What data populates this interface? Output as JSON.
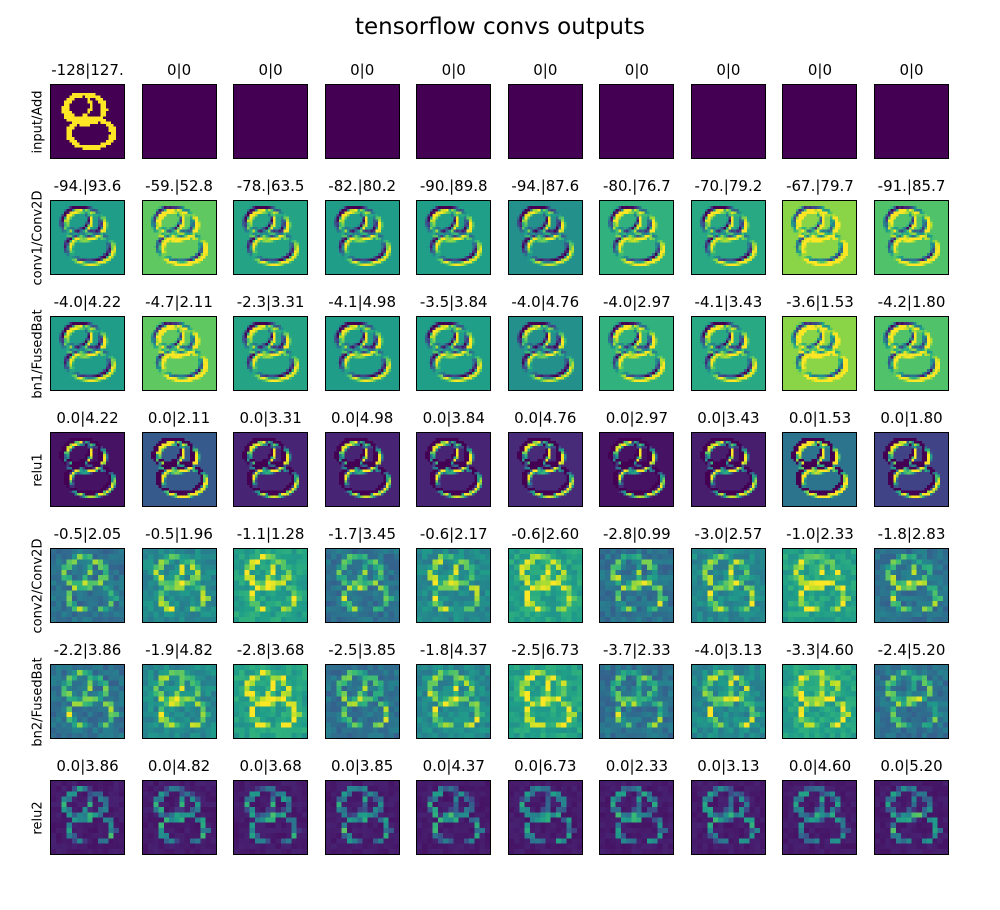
{
  "figure": {
    "title": "tensorflow convs outputs"
  },
  "chart_data": {
    "type": "heatmap",
    "title": "tensorflow convs outputs",
    "colormap": "viridis",
    "layout": {
      "rows": 7,
      "columns": 10
    },
    "rows": [
      {
        "name": "input/Add",
        "grid": 28,
        "panels": [
          {
            "label": "-128|127.",
            "min": -128,
            "max": 127,
            "pattern": "digit"
          },
          {
            "label": "0|0",
            "min": 0,
            "max": 0,
            "pattern": "constant"
          },
          {
            "label": "0|0",
            "min": 0,
            "max": 0,
            "pattern": "constant"
          },
          {
            "label": "0|0",
            "min": 0,
            "max": 0,
            "pattern": "constant"
          },
          {
            "label": "0|0",
            "min": 0,
            "max": 0,
            "pattern": "constant"
          },
          {
            "label": "0|0",
            "min": 0,
            "max": 0,
            "pattern": "constant"
          },
          {
            "label": "0|0",
            "min": 0,
            "max": 0,
            "pattern": "constant"
          },
          {
            "label": "0|0",
            "min": 0,
            "max": 0,
            "pattern": "constant"
          },
          {
            "label": "0|0",
            "min": 0,
            "max": 0,
            "pattern": "constant"
          },
          {
            "label": "0|0",
            "min": 0,
            "max": 0,
            "pattern": "constant"
          }
        ]
      },
      {
        "name": "conv1/Conv2D",
        "grid": 28,
        "panels": [
          {
            "label": "-94.|93.6",
            "min": -94,
            "max": 93.6,
            "pattern": "edge"
          },
          {
            "label": "-59.|52.8",
            "min": -59,
            "max": 52.8,
            "pattern": "edge"
          },
          {
            "label": "-78.|63.5",
            "min": -78,
            "max": 63.5,
            "pattern": "edge"
          },
          {
            "label": "-82.|80.2",
            "min": -82,
            "max": 80.2,
            "pattern": "edge"
          },
          {
            "label": "-90.|89.8",
            "min": -90,
            "max": 89.8,
            "pattern": "edge"
          },
          {
            "label": "-94.|87.6",
            "min": -94,
            "max": 87.6,
            "pattern": "edge"
          },
          {
            "label": "-80.|76.7",
            "min": -80,
            "max": 76.7,
            "pattern": "edge"
          },
          {
            "label": "-70.|79.2",
            "min": -70,
            "max": 79.2,
            "pattern": "edge"
          },
          {
            "label": "-67.|79.7",
            "min": -67,
            "max": 79.7,
            "pattern": "edge"
          },
          {
            "label": "-91.|85.7",
            "min": -91,
            "max": 85.7,
            "pattern": "edge"
          }
        ]
      },
      {
        "name": "bn1/FusedBat",
        "grid": 28,
        "panels": [
          {
            "label": "-4.0|4.22",
            "min": -4.0,
            "max": 4.22,
            "pattern": "edge"
          },
          {
            "label": "-4.7|2.11",
            "min": -4.7,
            "max": 2.11,
            "pattern": "edge"
          },
          {
            "label": "-2.3|3.31",
            "min": -2.3,
            "max": 3.31,
            "pattern": "edge"
          },
          {
            "label": "-4.1|4.98",
            "min": -4.1,
            "max": 4.98,
            "pattern": "edge"
          },
          {
            "label": "-3.5|3.84",
            "min": -3.5,
            "max": 3.84,
            "pattern": "edge"
          },
          {
            "label": "-4.0|4.76",
            "min": -4.0,
            "max": 4.76,
            "pattern": "edge"
          },
          {
            "label": "-4.0|2.97",
            "min": -4.0,
            "max": 2.97,
            "pattern": "edge"
          },
          {
            "label": "-4.1|3.43",
            "min": -4.1,
            "max": 3.43,
            "pattern": "edge"
          },
          {
            "label": "-3.6|1.53",
            "min": -3.6,
            "max": 1.53,
            "pattern": "edge"
          },
          {
            "label": "-4.2|1.80",
            "min": -4.2,
            "max": 1.8,
            "pattern": "edge"
          }
        ]
      },
      {
        "name": "relu1",
        "grid": 28,
        "panels": [
          {
            "label": "0.0|4.22",
            "min": 0.0,
            "max": 4.22,
            "pattern": "relu"
          },
          {
            "label": "0.0|2.11",
            "min": 0.0,
            "max": 2.11,
            "pattern": "relu"
          },
          {
            "label": "0.0|3.31",
            "min": 0.0,
            "max": 3.31,
            "pattern": "relu"
          },
          {
            "label": "0.0|4.98",
            "min": 0.0,
            "max": 4.98,
            "pattern": "relu"
          },
          {
            "label": "0.0|3.84",
            "min": 0.0,
            "max": 3.84,
            "pattern": "relu"
          },
          {
            "label": "0.0|4.76",
            "min": 0.0,
            "max": 4.76,
            "pattern": "relu"
          },
          {
            "label": "0.0|2.97",
            "min": 0.0,
            "max": 2.97,
            "pattern": "relu"
          },
          {
            "label": "0.0|3.43",
            "min": 0.0,
            "max": 3.43,
            "pattern": "relu"
          },
          {
            "label": "0.0|1.53",
            "min": 0.0,
            "max": 1.53,
            "pattern": "relu"
          },
          {
            "label": "0.0|1.80",
            "min": 0.0,
            "max": 1.8,
            "pattern": "relu"
          }
        ]
      },
      {
        "name": "conv2/Conv2D",
        "grid": 14,
        "panels": [
          {
            "label": "-0.5|2.05",
            "min": -0.5,
            "max": 2.05,
            "pattern": "coarse"
          },
          {
            "label": "-0.5|1.96",
            "min": -0.5,
            "max": 1.96,
            "pattern": "coarse"
          },
          {
            "label": "-1.1|1.28",
            "min": -1.1,
            "max": 1.28,
            "pattern": "coarse"
          },
          {
            "label": "-1.7|3.45",
            "min": -1.7,
            "max": 3.45,
            "pattern": "coarse"
          },
          {
            "label": "-0.6|2.17",
            "min": -0.6,
            "max": 2.17,
            "pattern": "coarse"
          },
          {
            "label": "-0.6|2.60",
            "min": -0.6,
            "max": 2.6,
            "pattern": "coarse"
          },
          {
            "label": "-2.8|0.99",
            "min": -2.8,
            "max": 0.99,
            "pattern": "coarse"
          },
          {
            "label": "-3.0|2.57",
            "min": -3.0,
            "max": 2.57,
            "pattern": "coarse"
          },
          {
            "label": "-1.0|2.33",
            "min": -1.0,
            "max": 2.33,
            "pattern": "coarse"
          },
          {
            "label": "-1.8|2.83",
            "min": -1.8,
            "max": 2.83,
            "pattern": "coarse"
          }
        ]
      },
      {
        "name": "bn2/FusedBat",
        "grid": 14,
        "panels": [
          {
            "label": "-2.2|3.86",
            "min": -2.2,
            "max": 3.86,
            "pattern": "coarse"
          },
          {
            "label": "-1.9|4.82",
            "min": -1.9,
            "max": 4.82,
            "pattern": "coarse"
          },
          {
            "label": "-2.8|3.68",
            "min": -2.8,
            "max": 3.68,
            "pattern": "coarse"
          },
          {
            "label": "-2.5|3.85",
            "min": -2.5,
            "max": 3.85,
            "pattern": "coarse"
          },
          {
            "label": "-1.8|4.37",
            "min": -1.8,
            "max": 4.37,
            "pattern": "coarse"
          },
          {
            "label": "-2.5|6.73",
            "min": -2.5,
            "max": 6.73,
            "pattern": "coarse"
          },
          {
            "label": "-3.7|2.33",
            "min": -3.7,
            "max": 2.33,
            "pattern": "coarse"
          },
          {
            "label": "-4.0|3.13",
            "min": -4.0,
            "max": 3.13,
            "pattern": "coarse"
          },
          {
            "label": "-3.3|4.60",
            "min": -3.3,
            "max": 4.6,
            "pattern": "coarse"
          },
          {
            "label": "-2.4|5.20",
            "min": -2.4,
            "max": 5.2,
            "pattern": "coarse"
          }
        ]
      },
      {
        "name": "relu2",
        "grid": 14,
        "panels": [
          {
            "label": "0.0|3.86",
            "min": 0.0,
            "max": 3.86,
            "pattern": "coarse-relu"
          },
          {
            "label": "0.0|4.82",
            "min": 0.0,
            "max": 4.82,
            "pattern": "coarse-relu"
          },
          {
            "label": "0.0|3.68",
            "min": 0.0,
            "max": 3.68,
            "pattern": "coarse-relu"
          },
          {
            "label": "0.0|3.85",
            "min": 0.0,
            "max": 3.85,
            "pattern": "coarse-relu"
          },
          {
            "label": "0.0|4.37",
            "min": 0.0,
            "max": 4.37,
            "pattern": "coarse-relu"
          },
          {
            "label": "0.0|6.73",
            "min": 0.0,
            "max": 6.73,
            "pattern": "coarse-relu"
          },
          {
            "label": "0.0|2.33",
            "min": 0.0,
            "max": 2.33,
            "pattern": "coarse-relu"
          },
          {
            "label": "0.0|3.13",
            "min": 0.0,
            "max": 3.13,
            "pattern": "coarse-relu"
          },
          {
            "label": "0.0|4.60",
            "min": 0.0,
            "max": 4.6,
            "pattern": "coarse-relu"
          },
          {
            "label": "0.0|5.20",
            "min": 0.0,
            "max": 5.2,
            "pattern": "coarse-relu"
          }
        ]
      }
    ]
  }
}
